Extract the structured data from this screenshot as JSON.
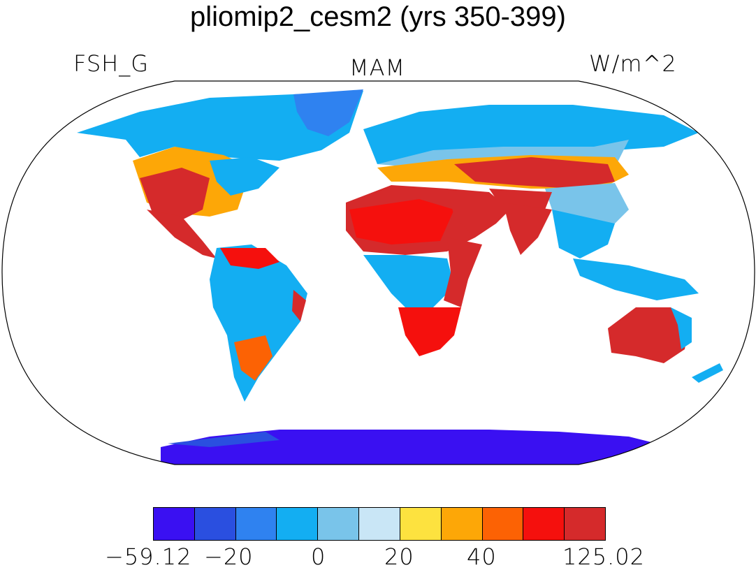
{
  "title": "pliomip2_cesm2 (yrs 350-399)",
  "variable": "FSH_G",
  "season": "MAM",
  "units": "W/m^2",
  "colorbar": {
    "colors": [
      "#3a10f2",
      "#2a4fe0",
      "#2f82f0",
      "#13aef2",
      "#79c4ea",
      "#c9e6f6",
      "#fde23f",
      "#fda707",
      "#fc6204",
      "#f5100d",
      "#d52a2b"
    ],
    "labels": [
      "−59.12",
      "−20",
      "0",
      "20",
      "40",
      "125.02"
    ]
  }
}
